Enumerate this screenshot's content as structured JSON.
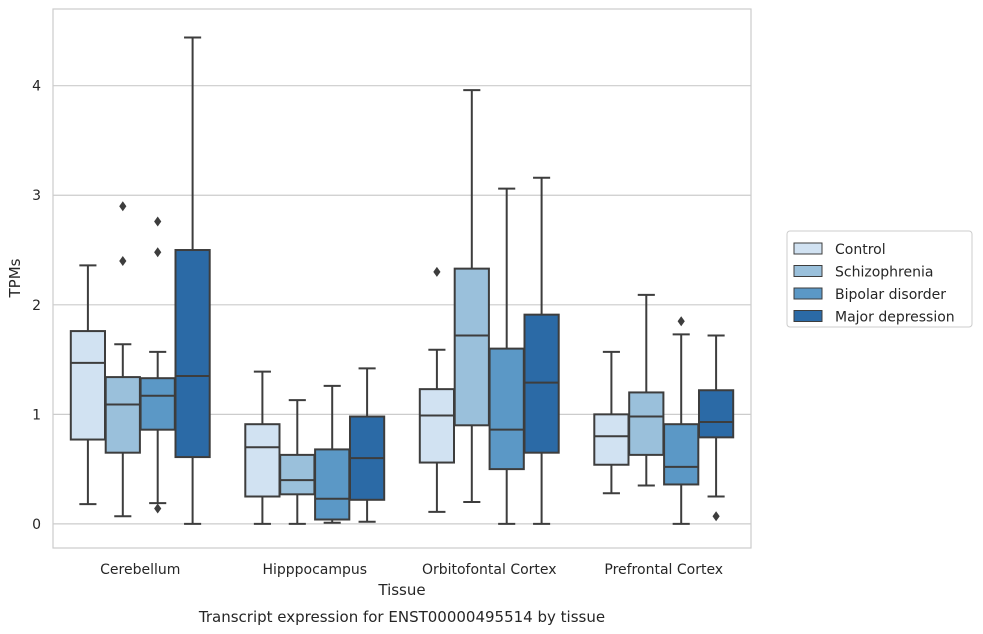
{
  "caption": "Transcript expression for ENST00000495514 by tissue",
  "chart_data": {
    "type": "box",
    "xlabel": "Tissue",
    "ylabel": "TPMs",
    "ylim": [
      -0.22,
      4.7
    ],
    "yticks": [
      0,
      1,
      2,
      3,
      4
    ],
    "grid": "horizontal",
    "legend_position": "right",
    "categories": [
      "Cerebellum",
      "Hipppocampus",
      "Orbitofontal Cortex",
      "Prefrontal Cortex"
    ],
    "series": [
      {
        "name": "Control",
        "color": "#d1e2f2",
        "boxes": [
          {
            "whislo": 0.18,
            "q1": 0.77,
            "med": 1.47,
            "q3": 1.76,
            "whishi": 2.36,
            "fliers": []
          },
          {
            "whislo": 0.0,
            "q1": 0.25,
            "med": 0.7,
            "q3": 0.91,
            "whishi": 1.39,
            "fliers": []
          },
          {
            "whislo": 0.11,
            "q1": 0.56,
            "med": 0.99,
            "q3": 1.23,
            "whishi": 1.59,
            "fliers": [
              2.3
            ]
          },
          {
            "whislo": 0.28,
            "q1": 0.54,
            "med": 0.8,
            "q3": 1.0,
            "whishi": 1.57,
            "fliers": []
          }
        ]
      },
      {
        "name": "Schizophrenia",
        "color": "#9ac0db",
        "boxes": [
          {
            "whislo": 0.07,
            "q1": 0.65,
            "med": 1.09,
            "q3": 1.34,
            "whishi": 1.64,
            "fliers": [
              2.4,
              2.9
            ]
          },
          {
            "whislo": 0.0,
            "q1": 0.27,
            "med": 0.4,
            "q3": 0.63,
            "whishi": 1.13,
            "fliers": []
          },
          {
            "whislo": 0.2,
            "q1": 0.9,
            "med": 1.72,
            "q3": 2.33,
            "whishi": 3.96,
            "fliers": []
          },
          {
            "whislo": 0.35,
            "q1": 0.63,
            "med": 0.98,
            "q3": 1.2,
            "whishi": 2.09,
            "fliers": []
          }
        ]
      },
      {
        "name": "Bipolar disorder",
        "color": "#5b98c6",
        "boxes": [
          {
            "whislo": 0.19,
            "q1": 0.86,
            "med": 1.17,
            "q3": 1.33,
            "whishi": 1.57,
            "fliers": [
              0.14,
              2.48,
              2.76
            ]
          },
          {
            "whislo": 0.01,
            "q1": 0.04,
            "med": 0.23,
            "q3": 0.68,
            "whishi": 1.26,
            "fliers": []
          },
          {
            "whislo": 0.0,
            "q1": 0.5,
            "med": 0.86,
            "q3": 1.6,
            "whishi": 3.06,
            "fliers": []
          },
          {
            "whislo": 0.0,
            "q1": 0.36,
            "med": 0.52,
            "q3": 0.91,
            "whishi": 1.73,
            "fliers": [
              1.85
            ]
          }
        ]
      },
      {
        "name": "Major depression",
        "color": "#2b6aa6",
        "boxes": [
          {
            "whislo": 0.0,
            "q1": 0.61,
            "med": 1.35,
            "q3": 2.5,
            "whishi": 4.44,
            "fliers": []
          },
          {
            "whislo": 0.02,
            "q1": 0.22,
            "med": 0.6,
            "q3": 0.98,
            "whishi": 1.42,
            "fliers": []
          },
          {
            "whislo": 0.0,
            "q1": 0.65,
            "med": 1.29,
            "q3": 1.91,
            "whishi": 3.16,
            "fliers": []
          },
          {
            "whislo": 0.25,
            "q1": 0.79,
            "med": 0.93,
            "q3": 1.22,
            "whishi": 1.72,
            "fliers": [
              0.07
            ]
          }
        ]
      }
    ]
  }
}
